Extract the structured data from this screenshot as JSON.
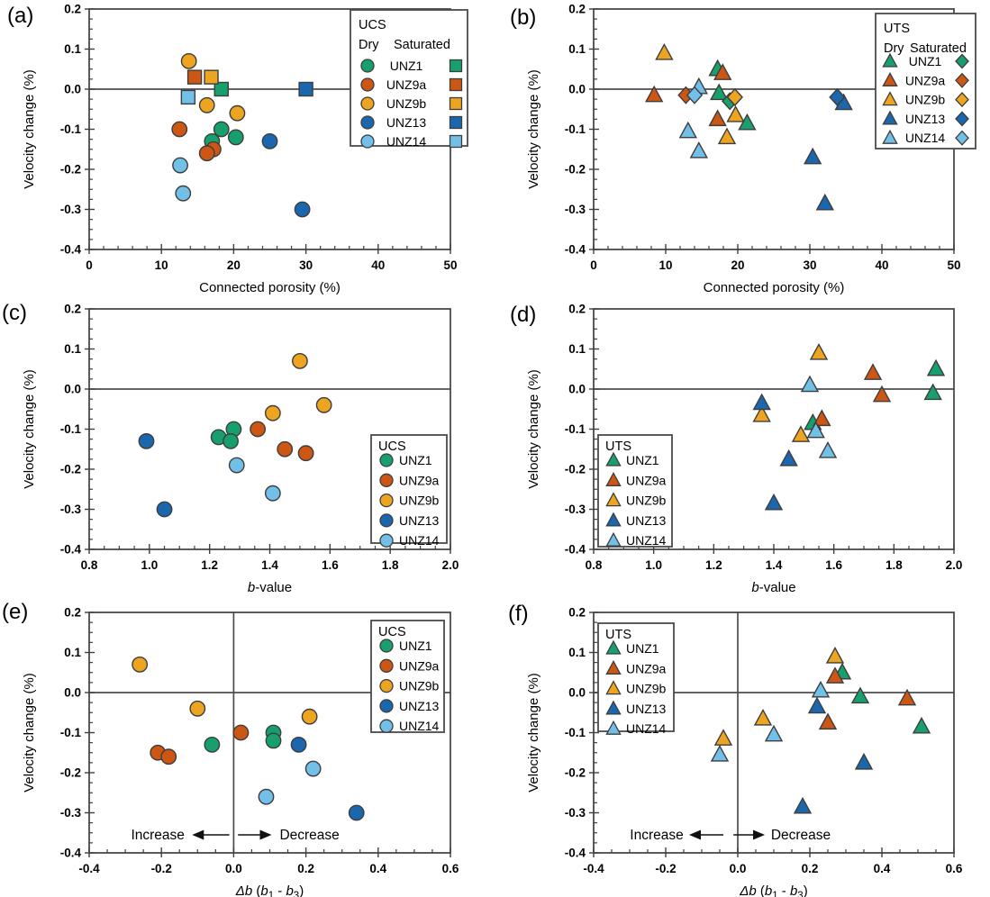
{
  "figure": {
    "background": "#ffffff"
  },
  "samples": [
    {
      "name": "UNZ1",
      "color": "#17a06e"
    },
    {
      "name": "UNZ9a",
      "color": "#cc5614"
    },
    {
      "name": "UNZ9b",
      "color": "#eda421"
    },
    {
      "name": "UNZ13",
      "color": "#1b67ae"
    },
    {
      "name": "UNZ14",
      "color": "#72bfe8"
    }
  ],
  "style_colors": {
    "marker_outline": "#3d3d3d",
    "axis": "#3f3f3f",
    "zero_line": "#4d4d4d",
    "text": "#000000"
  },
  "ylabel": "Velocity change (%)",
  "yticks": [
    "0.2",
    "0.1",
    "0.0",
    "-0.1",
    "-0.2",
    "-0.3",
    "-0.4"
  ],
  "chart_data": [
    {
      "panel": "a",
      "panel_label": "(a)",
      "type": "scatter",
      "test": "UCS",
      "xlabel": "Connected porosity (%)",
      "xlabel_segments": [
        {
          "t": "Connected porosity (%)"
        }
      ],
      "ylabel": "Velocity change (%)",
      "xlim": [
        0,
        50
      ],
      "ylim": [
        -0.4,
        0.2
      ],
      "xticks": [
        "0",
        "10",
        "20",
        "30",
        "40",
        "50"
      ],
      "xtick_values": [
        0,
        10,
        20,
        30,
        40,
        50
      ],
      "ytick_values": [
        0.2,
        0.1,
        0.0,
        -0.1,
        -0.2,
        -0.3,
        -0.4
      ],
      "legend": {
        "title": "UCS",
        "dry_label": "Dry",
        "saturated_label": "Saturated",
        "entries": [
          "UNZ1",
          "UNZ9a",
          "UNZ9b",
          "UNZ13",
          "UNZ14"
        ],
        "position": "top-right"
      },
      "series": [
        {
          "name": "UNZ1",
          "condition": "dry",
          "marker": "circle",
          "points": [
            [
              18.3,
              -0.1
            ],
            [
              20.3,
              -0.12
            ],
            [
              17.0,
              -0.13
            ]
          ]
        },
        {
          "name": "UNZ9a",
          "condition": "dry",
          "marker": "circle",
          "points": [
            [
              12.5,
              -0.1
            ],
            [
              17.2,
              -0.15
            ],
            [
              16.3,
              -0.16
            ]
          ]
        },
        {
          "name": "UNZ9b",
          "condition": "dry",
          "marker": "circle",
          "points": [
            [
              13.8,
              0.07
            ],
            [
              16.3,
              -0.04
            ],
            [
              20.5,
              -0.06
            ]
          ]
        },
        {
          "name": "UNZ13",
          "condition": "dry",
          "marker": "circle",
          "points": [
            [
              25.0,
              -0.13
            ],
            [
              29.5,
              -0.3
            ]
          ]
        },
        {
          "name": "UNZ14",
          "condition": "dry",
          "marker": "circle",
          "points": [
            [
              12.6,
              -0.19
            ],
            [
              13.0,
              -0.26
            ]
          ]
        },
        {
          "name": "UNZ1",
          "condition": "saturated",
          "marker": "square",
          "points": [
            [
              18.3,
              0.0
            ]
          ]
        },
        {
          "name": "UNZ9a",
          "condition": "saturated",
          "marker": "square",
          "points": [
            [
              14.6,
              0.03
            ]
          ]
        },
        {
          "name": "UNZ9b",
          "condition": "saturated",
          "marker": "square",
          "points": [
            [
              16.9,
              0.03
            ]
          ]
        },
        {
          "name": "UNZ13",
          "condition": "saturated",
          "marker": "square",
          "points": [
            [
              30.0,
              0.0
            ]
          ]
        },
        {
          "name": "UNZ14",
          "condition": "saturated",
          "marker": "square",
          "points": [
            [
              13.7,
              -0.02
            ]
          ]
        }
      ]
    },
    {
      "panel": "b",
      "panel_label": "(b)",
      "type": "scatter",
      "test": "UTS",
      "xlabel": "Connected porosity (%)",
      "xlabel_segments": [
        {
          "t": "Connected porosity (%)"
        }
      ],
      "ylabel": "Velocity change (%)",
      "xlim": [
        0,
        50
      ],
      "ylim": [
        -0.4,
        0.2
      ],
      "xticks": [
        "0",
        "10",
        "20",
        "30",
        "40",
        "50"
      ],
      "xtick_values": [
        0,
        10,
        20,
        30,
        40,
        50
      ],
      "ytick_values": [
        0.2,
        0.1,
        0.0,
        -0.1,
        -0.2,
        -0.3,
        -0.4
      ],
      "legend": {
        "title": "UTS",
        "dry_label": "Dry",
        "saturated_label": "Saturated",
        "entries": [
          "UNZ1",
          "UNZ9a",
          "UNZ9b",
          "UNZ13",
          "UNZ14"
        ],
        "position": "top-right"
      },
      "series": [
        {
          "name": "UNZ1",
          "condition": "dry",
          "marker": "triangle",
          "points": [
            [
              17.2,
              0.05
            ],
            [
              17.4,
              -0.01
            ],
            [
              21.3,
              -0.085
            ]
          ]
        },
        {
          "name": "UNZ9a",
          "condition": "dry",
          "marker": "triangle",
          "points": [
            [
              17.9,
              0.04
            ],
            [
              8.4,
              -0.015
            ],
            [
              17.2,
              -0.075
            ]
          ]
        },
        {
          "name": "UNZ9b",
          "condition": "dry",
          "marker": "triangle",
          "points": [
            [
              9.8,
              0.09
            ],
            [
              19.7,
              -0.065
            ],
            [
              18.5,
              -0.12
            ]
          ]
        },
        {
          "name": "UNZ13",
          "condition": "dry",
          "marker": "triangle",
          "points": [
            [
              34.7,
              -0.035
            ],
            [
              30.4,
              -0.17
            ],
            [
              32.1,
              -0.285
            ]
          ]
        },
        {
          "name": "UNZ14",
          "condition": "dry",
          "marker": "triangle",
          "points": [
            [
              14.6,
              0.005
            ],
            [
              13.1,
              -0.105
            ],
            [
              14.6,
              -0.155
            ]
          ]
        },
        {
          "name": "UNZ1",
          "condition": "saturated",
          "marker": "diamond",
          "points": [
            [
              18.9,
              -0.03
            ]
          ]
        },
        {
          "name": "UNZ9a",
          "condition": "saturated",
          "marker": "diamond",
          "points": [
            [
              12.8,
              -0.015
            ]
          ]
        },
        {
          "name": "UNZ9b",
          "condition": "saturated",
          "marker": "diamond",
          "points": [
            [
              19.6,
              -0.02
            ]
          ]
        },
        {
          "name": "UNZ13",
          "condition": "saturated",
          "marker": "diamond",
          "points": [
            [
              33.8,
              -0.02
            ]
          ]
        },
        {
          "name": "UNZ14",
          "condition": "saturated",
          "marker": "diamond",
          "points": [
            [
              14.0,
              -0.015
            ]
          ]
        }
      ]
    },
    {
      "panel": "c",
      "panel_label": "(c)",
      "type": "scatter",
      "test": "UCS",
      "xlabel": "b-value",
      "xlabel_segments": [
        {
          "t": "b",
          "i": 1
        },
        {
          "t": "-value"
        }
      ],
      "ylabel": "Velocity change (%)",
      "xlim": [
        0.8,
        2.0
      ],
      "ylim": [
        -0.4,
        0.2
      ],
      "xticks": [
        "0.8",
        "1.0",
        "1.2",
        "1.4",
        "1.6",
        "1.8",
        "2.0"
      ],
      "xtick_values": [
        0.8,
        1.0,
        1.2,
        1.4,
        1.6,
        1.8,
        2.0
      ],
      "ytick_values": [
        0.2,
        0.1,
        0.0,
        -0.1,
        -0.2,
        -0.3,
        -0.4
      ],
      "legend": {
        "title": "UCS",
        "entries": [
          "UNZ1",
          "UNZ9a",
          "UNZ9b",
          "UNZ13",
          "UNZ14"
        ],
        "position": "bottom-right"
      },
      "series": [
        {
          "name": "UNZ1",
          "condition": "dry",
          "marker": "circle",
          "points": [
            [
              1.28,
              -0.1
            ],
            [
              1.23,
              -0.12
            ],
            [
              1.27,
              -0.13
            ]
          ]
        },
        {
          "name": "UNZ9a",
          "condition": "dry",
          "marker": "circle",
          "points": [
            [
              1.36,
              -0.1
            ],
            [
              1.45,
              -0.15
            ],
            [
              1.52,
              -0.16
            ]
          ]
        },
        {
          "name": "UNZ9b",
          "condition": "dry",
          "marker": "circle",
          "points": [
            [
              1.5,
              0.07
            ],
            [
              1.58,
              -0.04
            ],
            [
              1.41,
              -0.06
            ]
          ]
        },
        {
          "name": "UNZ13",
          "condition": "dry",
          "marker": "circle",
          "points": [
            [
              0.99,
              -0.13
            ],
            [
              1.05,
              -0.3
            ]
          ]
        },
        {
          "name": "UNZ14",
          "condition": "dry",
          "marker": "circle",
          "points": [
            [
              1.29,
              -0.19
            ],
            [
              1.41,
              -0.26
            ]
          ]
        }
      ]
    },
    {
      "panel": "d",
      "panel_label": "(d)",
      "type": "scatter",
      "test": "UTS",
      "xlabel": "b-value",
      "xlabel_segments": [
        {
          "t": "b",
          "i": 1
        },
        {
          "t": "-value"
        }
      ],
      "ylabel": "Velocity change (%)",
      "xlim": [
        0.8,
        2.0
      ],
      "ylim": [
        -0.4,
        0.2
      ],
      "xticks": [
        "0.8",
        "1.0",
        "1.2",
        "1.4",
        "1.6",
        "1.8",
        "2.0"
      ],
      "xtick_values": [
        0.8,
        1.0,
        1.2,
        1.4,
        1.6,
        1.8,
        2.0
      ],
      "ytick_values": [
        0.2,
        0.1,
        0.0,
        -0.1,
        -0.2,
        -0.3,
        -0.4
      ],
      "legend": {
        "title": "UTS",
        "entries": [
          "UNZ1",
          "UNZ9a",
          "UNZ9b",
          "UNZ13",
          "UNZ14"
        ],
        "position": "bottom-left"
      },
      "series": [
        {
          "name": "UNZ1",
          "condition": "dry",
          "marker": "triangle",
          "points": [
            [
              1.94,
              0.05
            ],
            [
              1.93,
              -0.01
            ],
            [
              1.53,
              -0.085
            ]
          ]
        },
        {
          "name": "UNZ9a",
          "condition": "dry",
          "marker": "triangle",
          "points": [
            [
              1.73,
              0.04
            ],
            [
              1.76,
              -0.015
            ],
            [
              1.56,
              -0.075
            ]
          ]
        },
        {
          "name": "UNZ9b",
          "condition": "dry",
          "marker": "triangle",
          "points": [
            [
              1.55,
              0.09
            ],
            [
              1.36,
              -0.065
            ],
            [
              1.49,
              -0.115
            ]
          ]
        },
        {
          "name": "UNZ13",
          "condition": "dry",
          "marker": "triangle",
          "points": [
            [
              1.36,
              -0.035
            ],
            [
              1.45,
              -0.175
            ],
            [
              1.4,
              -0.285
            ]
          ]
        },
        {
          "name": "UNZ14",
          "condition": "dry",
          "marker": "triangle",
          "points": [
            [
              1.52,
              0.01
            ],
            [
              1.54,
              -0.105
            ],
            [
              1.58,
              -0.155
            ]
          ]
        }
      ]
    },
    {
      "panel": "e",
      "panel_label": "(e)",
      "type": "scatter",
      "test": "UCS",
      "xlabel": "Δb (b1 - b3)",
      "xlabel_segments": [
        {
          "t": "Δb",
          "i": 1
        },
        {
          "t": " ("
        },
        {
          "t": "b",
          "i": 1
        },
        {
          "t": "1",
          "s": 1
        },
        {
          "t": " - "
        },
        {
          "t": "b",
          "i": 1
        },
        {
          "t": "3",
          "s": 1
        },
        {
          "t": ")"
        }
      ],
      "ylabel": "Velocity change (%)",
      "xlim": [
        -0.4,
        0.6
      ],
      "ylim": [
        -0.4,
        0.2
      ],
      "xticks": [
        "-0.4",
        "-0.2",
        "0.0",
        "0.2",
        "0.4",
        "0.6"
      ],
      "xtick_values": [
        -0.4,
        -0.2,
        0.0,
        0.2,
        0.4,
        0.6
      ],
      "ytick_values": [
        0.2,
        0.1,
        0.0,
        -0.1,
        -0.2,
        -0.3,
        -0.4
      ],
      "legend": {
        "title": "UCS",
        "entries": [
          "UNZ1",
          "UNZ9a",
          "UNZ9b",
          "UNZ13",
          "UNZ14"
        ],
        "position": "top-right"
      },
      "annotations": {
        "increase": "Increase",
        "decrease": "Decrease"
      },
      "series": [
        {
          "name": "UNZ1",
          "condition": "dry",
          "marker": "circle",
          "points": [
            [
              0.11,
              -0.1
            ],
            [
              0.11,
              -0.12
            ],
            [
              -0.06,
              -0.13
            ]
          ]
        },
        {
          "name": "UNZ9a",
          "condition": "dry",
          "marker": "circle",
          "points": [
            [
              0.02,
              -0.1
            ],
            [
              -0.21,
              -0.15
            ],
            [
              -0.18,
              -0.16
            ]
          ]
        },
        {
          "name": "UNZ9b",
          "condition": "dry",
          "marker": "circle",
          "points": [
            [
              -0.26,
              0.07
            ],
            [
              -0.1,
              -0.04
            ],
            [
              0.21,
              -0.06
            ]
          ]
        },
        {
          "name": "UNZ13",
          "condition": "dry",
          "marker": "circle",
          "points": [
            [
              0.18,
              -0.13
            ],
            [
              0.34,
              -0.3
            ]
          ]
        },
        {
          "name": "UNZ14",
          "condition": "dry",
          "marker": "circle",
          "points": [
            [
              0.22,
              -0.19
            ],
            [
              0.09,
              -0.26
            ]
          ]
        }
      ]
    },
    {
      "panel": "f",
      "panel_label": "(f)",
      "type": "scatter",
      "test": "UTS",
      "xlabel": "Δb (b1 - b3)",
      "xlabel_segments": [
        {
          "t": "Δb",
          "i": 1
        },
        {
          "t": " ("
        },
        {
          "t": "b",
          "i": 1
        },
        {
          "t": "1",
          "s": 1
        },
        {
          "t": " - "
        },
        {
          "t": "b",
          "i": 1
        },
        {
          "t": "3",
          "s": 1
        },
        {
          "t": ")"
        }
      ],
      "ylabel": "Velocity change (%)",
      "xlim": [
        -0.4,
        0.6
      ],
      "ylim": [
        -0.4,
        0.2
      ],
      "xticks": [
        "-0.4",
        "-0.2",
        "0.0",
        "0.2",
        "0.4",
        "0.6"
      ],
      "xtick_values": [
        -0.4,
        -0.2,
        0.0,
        0.2,
        0.4,
        0.6
      ],
      "ytick_values": [
        0.2,
        0.1,
        0.0,
        -0.1,
        -0.2,
        -0.3,
        -0.4
      ],
      "legend": {
        "title": "UTS",
        "entries": [
          "UNZ1",
          "UNZ9a",
          "UNZ9b",
          "UNZ13",
          "UNZ14"
        ],
        "position": "top-left"
      },
      "annotations": {
        "increase": "Increase",
        "decrease": "Decrease"
      },
      "series": [
        {
          "name": "UNZ1",
          "condition": "dry",
          "marker": "triangle",
          "points": [
            [
              0.29,
              0.05
            ],
            [
              0.34,
              -0.01
            ],
            [
              0.51,
              -0.085
            ]
          ]
        },
        {
          "name": "UNZ9a",
          "condition": "dry",
          "marker": "triangle",
          "points": [
            [
              0.27,
              0.04
            ],
            [
              0.47,
              -0.015
            ],
            [
              0.25,
              -0.075
            ]
          ]
        },
        {
          "name": "UNZ9b",
          "condition": "dry",
          "marker": "triangle",
          "points": [
            [
              0.27,
              0.09
            ],
            [
              0.07,
              -0.065
            ],
            [
              -0.04,
              -0.115
            ]
          ]
        },
        {
          "name": "UNZ13",
          "condition": "dry",
          "marker": "triangle",
          "points": [
            [
              0.22,
              -0.035
            ],
            [
              0.35,
              -0.175
            ],
            [
              0.18,
              -0.285
            ]
          ]
        },
        {
          "name": "UNZ14",
          "condition": "dry",
          "marker": "triangle",
          "points": [
            [
              0.23,
              0.005
            ],
            [
              0.1,
              -0.105
            ],
            [
              -0.05,
              -0.155
            ]
          ]
        }
      ]
    }
  ]
}
